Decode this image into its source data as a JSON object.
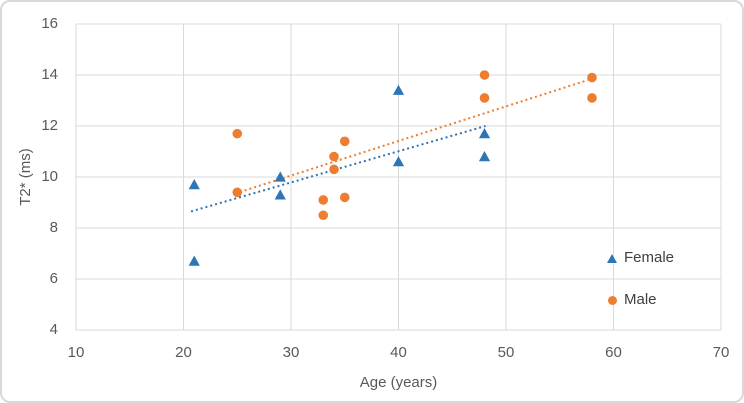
{
  "figure": {
    "background_color": "#FFFFFF",
    "border_color": "#D9D9D9"
  },
  "chart_data": {
    "type": "scatter",
    "title": "",
    "xlabel": "Age (years)",
    "ylabel": "T2* (ms)",
    "xlim": [
      10,
      70
    ],
    "ylim": [
      4,
      16
    ],
    "x_ticks": [
      10,
      20,
      30,
      40,
      50,
      60,
      70
    ],
    "y_ticks": [
      4,
      6,
      8,
      10,
      12,
      14,
      16
    ],
    "grid": true,
    "gridline_color": "#D9D9D9",
    "tick_color": "#595959",
    "axis_title_color": "#595959",
    "legend_position": "right-middle",
    "legend_text_color": "#404040",
    "series": [
      {
        "name": "Female",
        "marker": "triangle",
        "color": "#2E75B6",
        "points": [
          [
            21,
            9.7
          ],
          [
            21,
            6.7
          ],
          [
            29,
            10.0
          ],
          [
            29,
            9.3
          ],
          [
            40,
            13.4
          ],
          [
            40,
            10.6
          ],
          [
            48,
            11.7
          ],
          [
            48,
            10.8
          ]
        ],
        "trendline": {
          "style": "dotted",
          "x1": 20.7,
          "y1": 8.65,
          "x2": 48.1,
          "y2": 12.0
        }
      },
      {
        "name": "Male",
        "marker": "circle",
        "color": "#ED7D31",
        "points": [
          [
            25,
            11.7
          ],
          [
            25,
            9.4
          ],
          [
            33,
            9.1
          ],
          [
            33,
            8.5
          ],
          [
            34,
            10.8
          ],
          [
            34,
            10.3
          ],
          [
            35,
            11.4
          ],
          [
            35,
            9.2
          ],
          [
            48,
            14.0
          ],
          [
            48,
            13.1
          ],
          [
            58,
            13.9
          ],
          [
            58,
            13.1
          ]
        ],
        "trendline": {
          "style": "dotted",
          "x1": 24.8,
          "y1": 9.35,
          "x2": 57.6,
          "y2": 13.8
        }
      }
    ]
  }
}
